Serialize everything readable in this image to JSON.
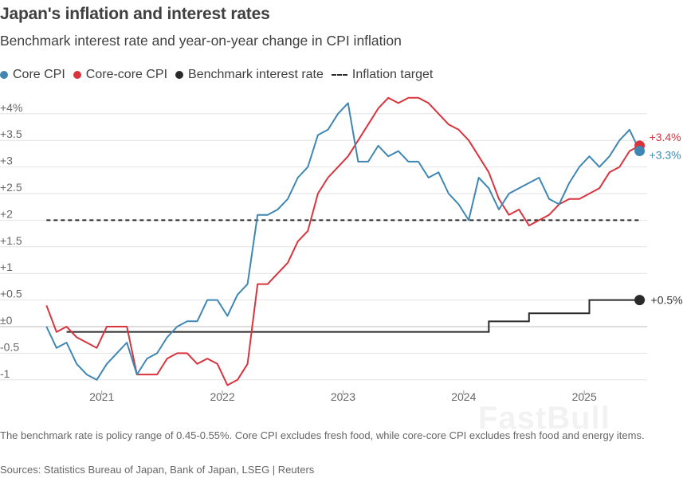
{
  "header": {
    "title": "Japan's inflation and interest rates",
    "subtitle": "Benchmark interest rate and year-on-year change in CPI inflation"
  },
  "legend": [
    {
      "label": "Core CPI",
      "color": "#3f87b2",
      "marker": "dot"
    },
    {
      "label": "Core-core CPI",
      "color": "#d9343e",
      "marker": "dot"
    },
    {
      "label": "Benchmark interest rate",
      "color": "#2a2a2a",
      "marker": "dot"
    },
    {
      "label": "Inflation target",
      "color": "#2a2a2a",
      "marker": "dash"
    }
  ],
  "footer": {
    "note": "The benchmark rate is policy range of 0.45-0.55%. Core CPI excludes fresh food, while core-core CPI excludes fresh food and energy items.",
    "source": "Sources: Statistics Bureau of Japan, Bank of Japan, LSEG | Reuters"
  },
  "watermark": "FastBull",
  "chart_data": {
    "type": "line",
    "title": "Japan's inflation and interest rates",
    "xlabel": "",
    "ylabel": "",
    "ylim": [
      -1.2,
      4.5
    ],
    "xlim": [
      2020.5,
      2025.6
    ],
    "y_ticks": [
      -1,
      -0.5,
      0,
      0.5,
      1,
      1.5,
      2,
      2.5,
      3,
      3.5,
      4
    ],
    "y_tick_labels": [
      "-1",
      "-0.5",
      "±0",
      "+0.5",
      "+1",
      "+1.5",
      "+2",
      "+2.5",
      "+3",
      "+3.5",
      "+4%"
    ],
    "x_ticks": [
      2021,
      2022,
      2023,
      2024,
      2025
    ],
    "x_tick_labels": [
      "2021",
      "2022",
      "2023",
      "2024",
      "2025"
    ],
    "grid": true,
    "legend_position": "top-left",
    "colors": {
      "core": "#3f87b2",
      "core_core": "#d9343e",
      "rate": "#2a2a2a",
      "target": "#2a2a2a"
    },
    "x": [
      "2020-07",
      "2020-08",
      "2020-09",
      "2020-10",
      "2020-11",
      "2020-12",
      "2021-01",
      "2021-02",
      "2021-03",
      "2021-04",
      "2021-05",
      "2021-06",
      "2021-07",
      "2021-08",
      "2021-09",
      "2021-10",
      "2021-11",
      "2021-12",
      "2022-01",
      "2022-02",
      "2022-03",
      "2022-04",
      "2022-05",
      "2022-06",
      "2022-07",
      "2022-08",
      "2022-09",
      "2022-10",
      "2022-11",
      "2022-12",
      "2023-01",
      "2023-02",
      "2023-03",
      "2023-04",
      "2023-05",
      "2023-06",
      "2023-07",
      "2023-08",
      "2023-09",
      "2023-10",
      "2023-11",
      "2023-12",
      "2024-01",
      "2024-02",
      "2024-03",
      "2024-04",
      "2024-05",
      "2024-06",
      "2024-07",
      "2024-08",
      "2024-09",
      "2024-10",
      "2024-11",
      "2024-12",
      "2025-01",
      "2025-02",
      "2025-03",
      "2025-04",
      "2025-05",
      "2025-06"
    ],
    "series": [
      {
        "name": "Core CPI",
        "values": [
          0,
          -0.4,
          -0.3,
          -0.7,
          -0.9,
          -1.0,
          -0.7,
          -0.5,
          -0.3,
          -0.9,
          -0.6,
          -0.5,
          -0.2,
          0.0,
          0.1,
          0.1,
          0.5,
          0.5,
          0.2,
          0.6,
          0.8,
          2.1,
          2.1,
          2.2,
          2.4,
          2.8,
          3.0,
          3.6,
          3.7,
          4.0,
          4.2,
          3.1,
          3.1,
          3.4,
          3.2,
          3.3,
          3.1,
          3.1,
          2.8,
          2.9,
          2.5,
          2.3,
          2.0,
          2.8,
          2.6,
          2.2,
          2.5,
          2.6,
          2.7,
          2.8,
          2.4,
          2.3,
          2.7,
          3.0,
          3.2,
          3.0,
          3.2,
          3.5,
          3.7,
          3.3
        ],
        "end_label": "+3.3%"
      },
      {
        "name": "Core-core CPI",
        "values": [
          0.4,
          -0.1,
          0.0,
          -0.2,
          -0.3,
          -0.4,
          0.0,
          0.0,
          0.0,
          -0.9,
          -0.9,
          -0.9,
          -0.6,
          -0.5,
          -0.5,
          -0.7,
          -0.6,
          -0.7,
          -1.1,
          -1.0,
          -0.7,
          0.8,
          0.8,
          1.0,
          1.2,
          1.6,
          1.8,
          2.5,
          2.8,
          3.0,
          3.2,
          3.5,
          3.8,
          4.1,
          4.3,
          4.2,
          4.3,
          4.3,
          4.2,
          4.0,
          3.8,
          3.7,
          3.5,
          3.2,
          2.9,
          2.4,
          2.1,
          2.2,
          1.9,
          2.0,
          2.1,
          2.3,
          2.4,
          2.4,
          2.5,
          2.6,
          2.9,
          3.0,
          3.3,
          3.4
        ],
        "end_label": "+3.4%"
      },
      {
        "name": "Benchmark interest rate",
        "step": true,
        "points": [
          [
            "2020-09",
            -0.1
          ],
          [
            "2024-03",
            0.1
          ],
          [
            "2024-07",
            0.25
          ],
          [
            "2025-01",
            0.5
          ],
          [
            "2025-06",
            0.5
          ]
        ],
        "end_label": "+0.5%"
      },
      {
        "name": "Inflation target",
        "dashed": true,
        "points": [
          [
            "2020-07",
            2.0
          ],
          [
            "2025-06",
            2.0
          ]
        ]
      }
    ]
  }
}
